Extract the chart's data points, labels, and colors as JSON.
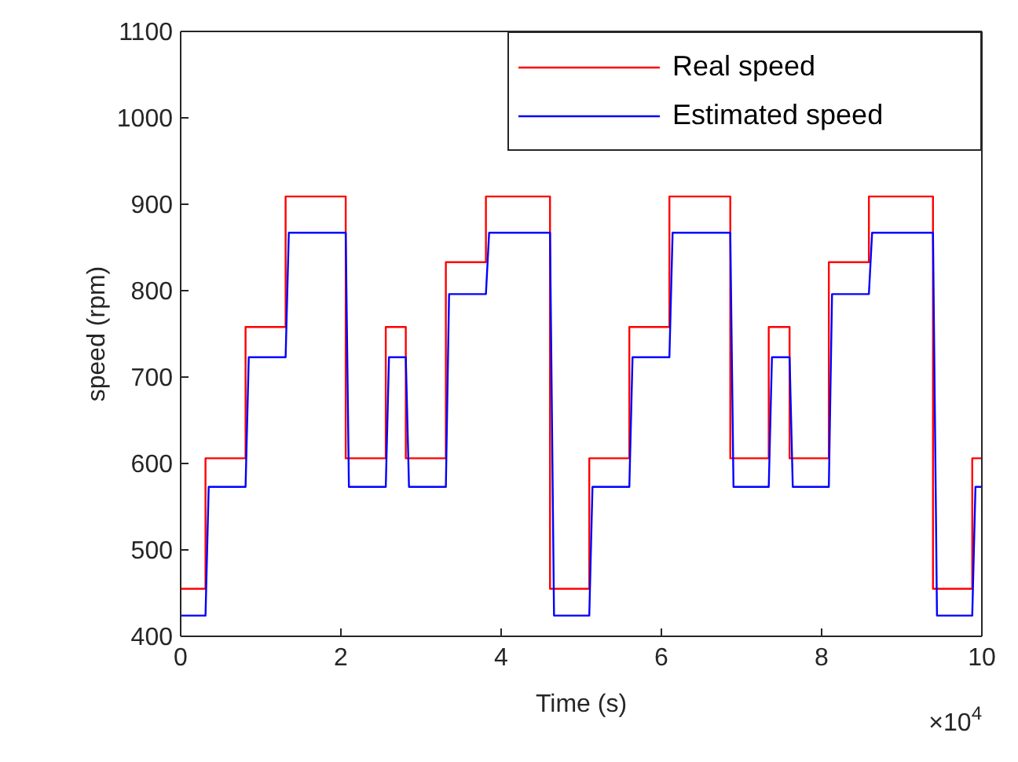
{
  "chart_data": {
    "type": "line",
    "xlabel": "Time (s)",
    "ylabel": "speed (rpm)",
    "annotations": [
      "×10$^{4}$"
    ],
    "xlim": [
      0,
      10
    ],
    "xticks": [
      0,
      2,
      4,
      6,
      8,
      10
    ],
    "ylim": [
      400,
      1100
    ],
    "yticks": [
      400,
      500,
      600,
      700,
      800,
      900,
      1000,
      1100
    ],
    "legend": "top right",
    "marker": "none",
    "line_style": "solid",
    "series": [
      {
        "name": "Real speed",
        "type": "step",
        "color": "#ff0000",
        "x": [
          0,
          0.31,
          0.81,
          1.31,
          2.06,
          2.56,
          2.81,
          3.31,
          3.81,
          4.61,
          5.1,
          5.6,
          6.1,
          6.86,
          7.34,
          7.6,
          8.09,
          8.59,
          9.39,
          9.88,
          10
        ],
        "values": [
          455,
          606,
          758,
          909,
          606,
          758,
          606,
          833,
          909,
          455,
          606,
          758,
          909,
          606,
          758,
          606,
          833,
          909,
          455,
          606,
          606
        ]
      },
      {
        "name": "Estimated speed",
        "color": "#0000ff",
        "x": [
          0,
          0.31,
          0.35,
          0.81,
          0.85,
          1.31,
          1.35,
          2.06,
          2.1,
          2.56,
          2.6,
          2.81,
          2.85,
          3.31,
          3.35,
          3.81,
          3.85,
          4.61,
          4.66,
          5.1,
          5.14,
          5.6,
          5.64,
          6.1,
          6.14,
          6.86,
          6.9,
          7.34,
          7.38,
          7.6,
          7.64,
          8.09,
          8.13,
          8.59,
          8.63,
          9.39,
          9.44,
          9.88,
          9.92,
          10
        ],
        "values": [
          424,
          424,
          573,
          573,
          723,
          723,
          867,
          867,
          573,
          573,
          723,
          723,
          573,
          573,
          796,
          796,
          867,
          867,
          424,
          424,
          573,
          573,
          723,
          723,
          867,
          867,
          573,
          573,
          723,
          723,
          573,
          573,
          796,
          796,
          867,
          867,
          424,
          424,
          573,
          573
        ]
      }
    ]
  }
}
